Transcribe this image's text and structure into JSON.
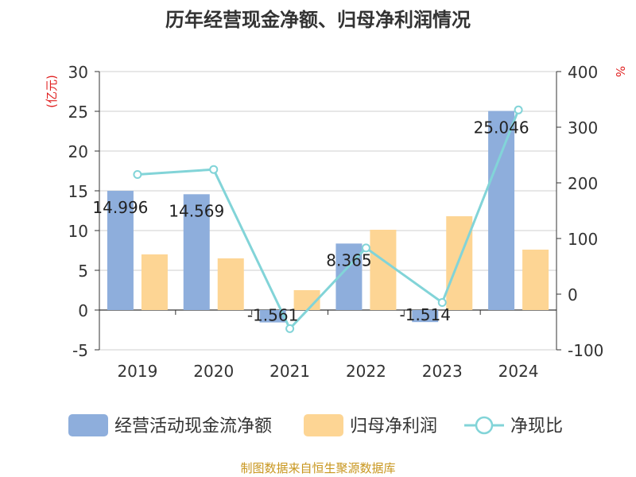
{
  "chart_data": {
    "type": "bar",
    "title": "历年经营现金净额、归母净利润情况",
    "left_axis_label": "(亿元)",
    "right_axis_label": "%",
    "categories": [
      "2019",
      "2020",
      "2021",
      "2022",
      "2023",
      "2024"
    ],
    "left_ylim": [
      -5,
      30
    ],
    "left_ticks": [
      "30",
      "25",
      "20",
      "15",
      "10",
      "5",
      "0",
      "-5"
    ],
    "right_ylim": [
      -100,
      400
    ],
    "right_ticks": [
      "400",
      "300",
      "200",
      "100",
      "0",
      "-100"
    ],
    "series": [
      {
        "name": "经营活动现金流净额",
        "type": "bar",
        "axis": "left",
        "color": "#8eaedc",
        "values": [
          14.996,
          14.569,
          -1.561,
          8.365,
          -1.514,
          25.046
        ],
        "labels": [
          "14.996",
          "14.569",
          "-1.561",
          "8.365",
          "-1.514",
          "25.046"
        ]
      },
      {
        "name": "归母净利润",
        "type": "bar",
        "axis": "left",
        "color": "#fdd594",
        "values": [
          7.0,
          6.5,
          2.5,
          10.1,
          11.8,
          7.6
        ]
      },
      {
        "name": "净现比",
        "type": "line",
        "axis": "right",
        "color": "#82d4d8",
        "values": [
          215,
          224,
          -62,
          83,
          -15,
          331
        ]
      }
    ],
    "grid": true,
    "legend_position": "bottom"
  },
  "footer": {
    "source": "制图数据来自恒生聚源数据库"
  }
}
